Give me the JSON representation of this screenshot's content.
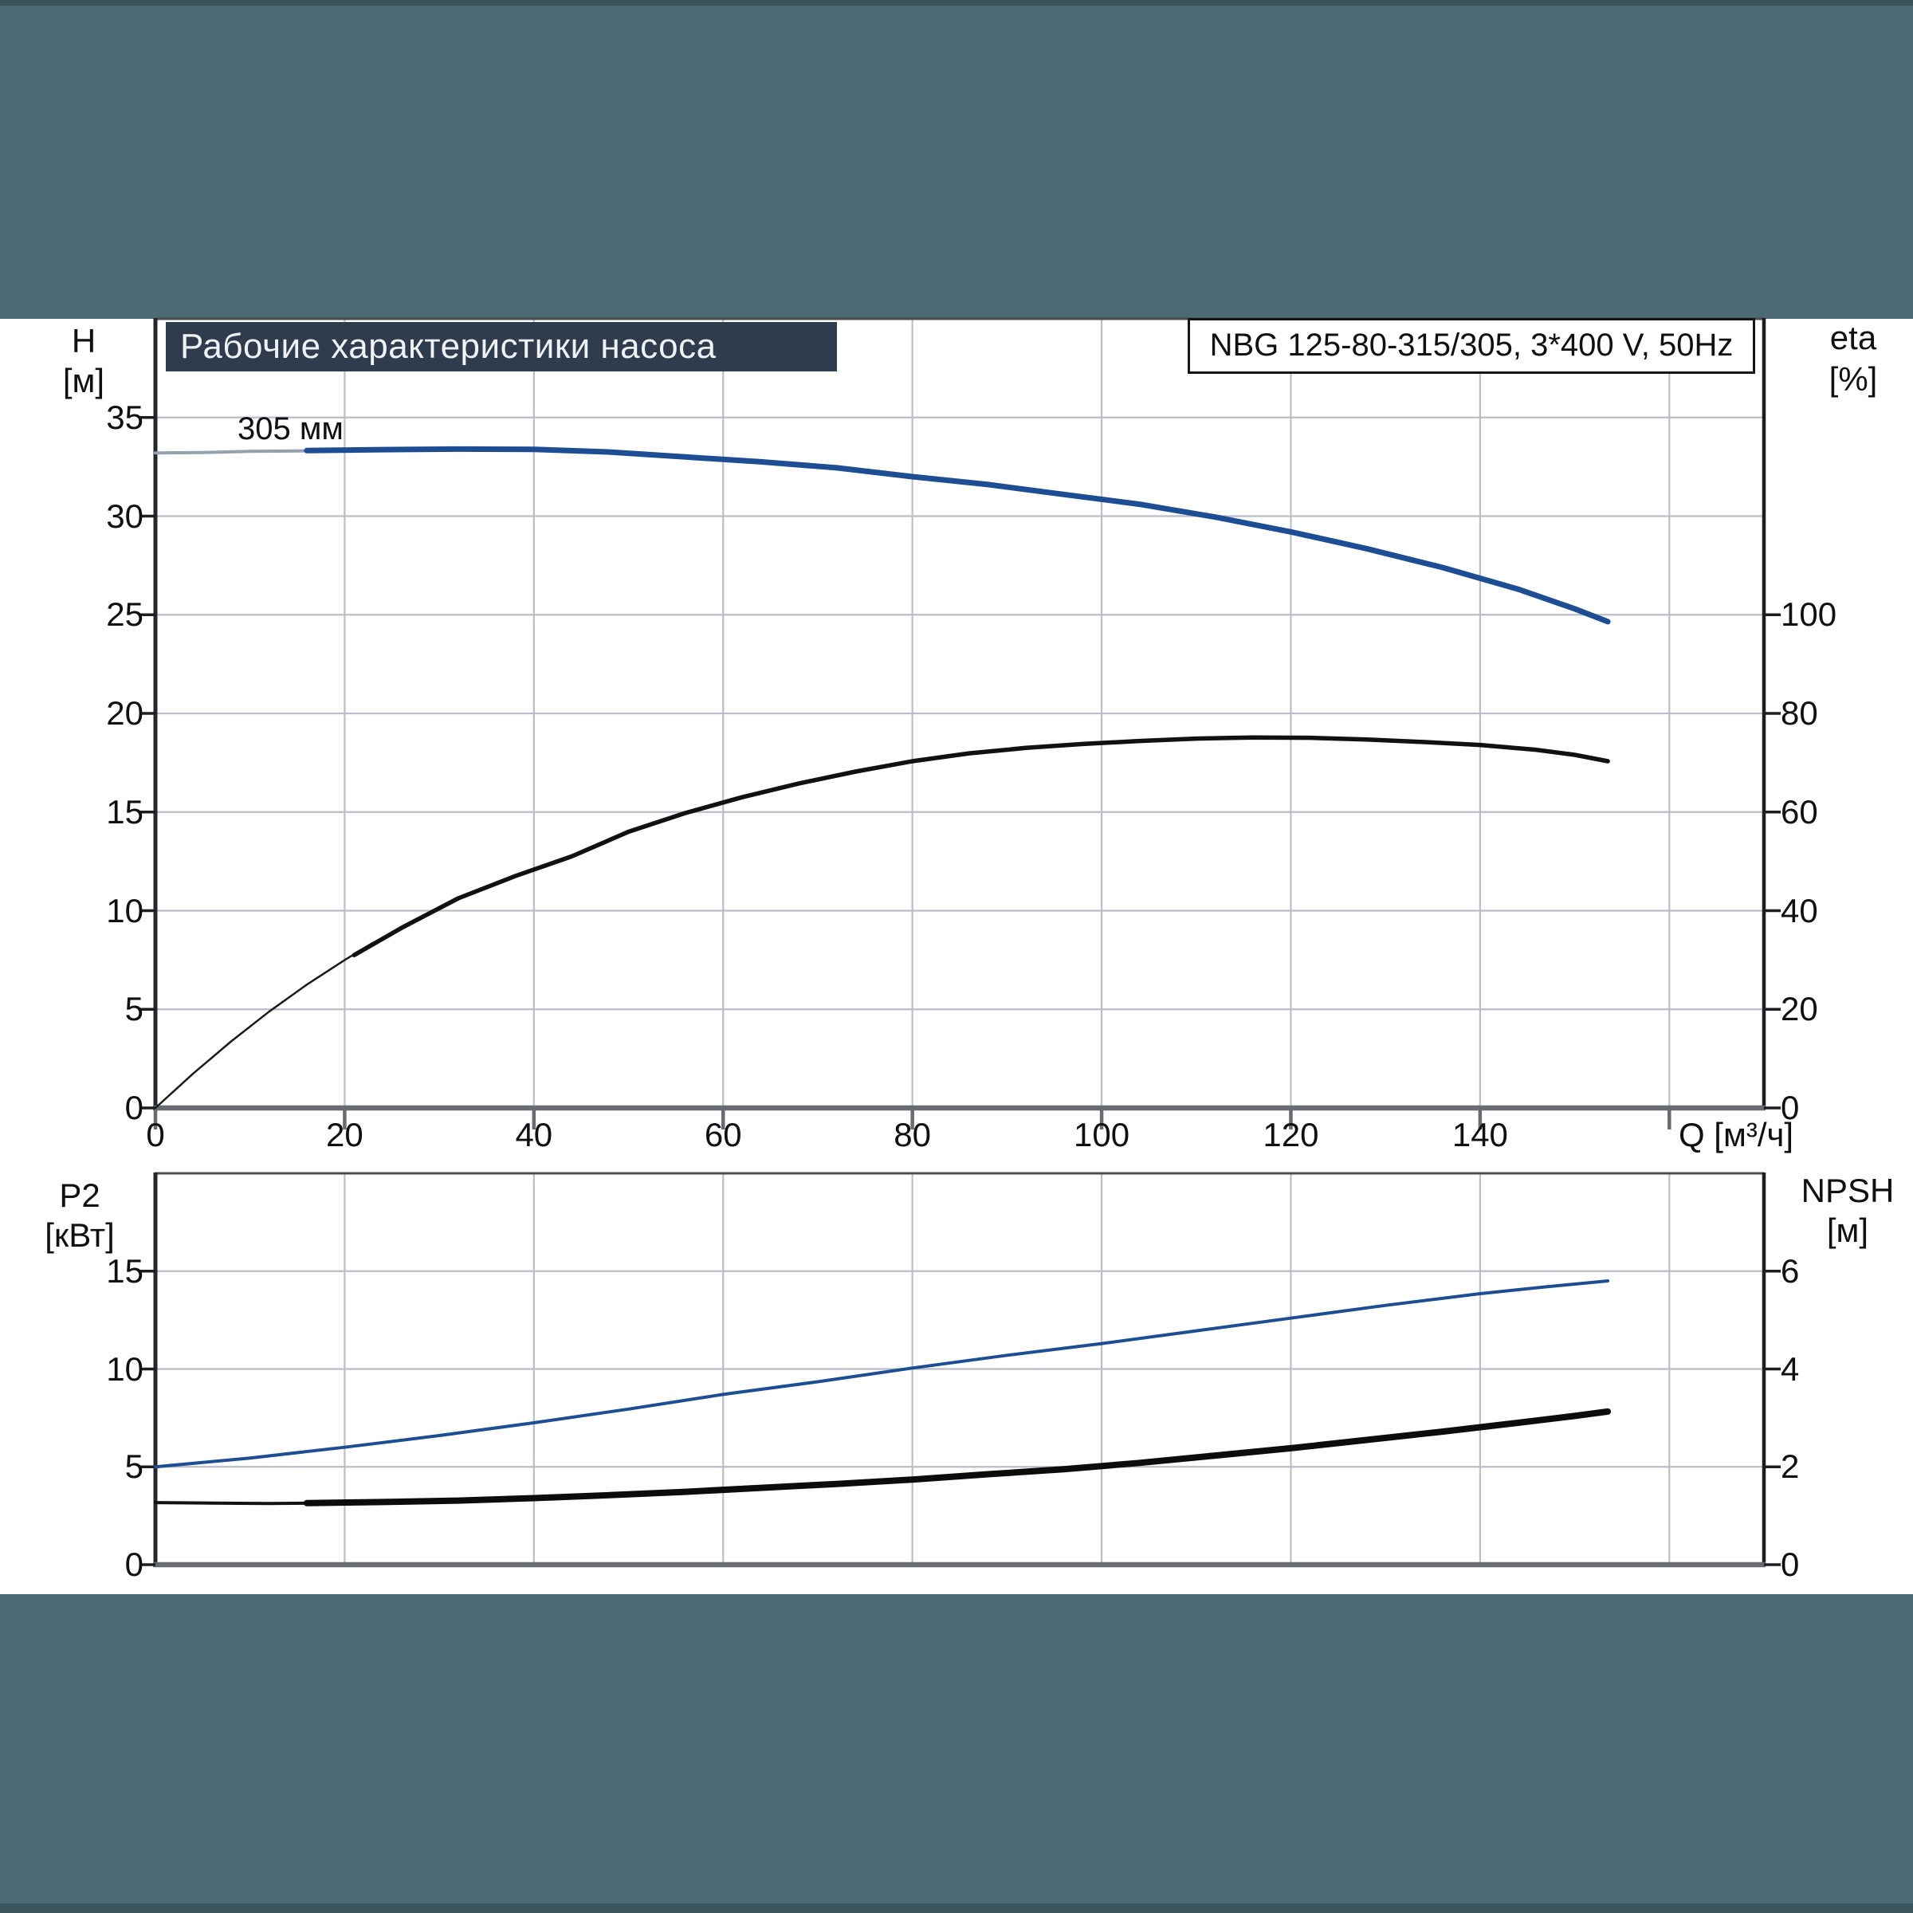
{
  "page": {
    "background": "#4d6973",
    "edge_color": "#3a545e",
    "sheet_color": "#ffffff"
  },
  "header": {
    "title": "Рабочие характеристики насоса",
    "title_bg": "#2e3c4e",
    "title_color": "#eef2f5",
    "product_label": "NBG 125-80-315/305, 3*400 V, 50Hz"
  },
  "labels": {
    "h_name": "H",
    "h_unit": "[м]",
    "eta_name": "eta",
    "eta_unit": "[%]",
    "q_label": "Q [м³/ч]",
    "curve_label": "305 мм",
    "p2_name": "P2",
    "p2_unit": "[кВт]",
    "npsh_name": "NPSH",
    "npsh_unit": "[м]"
  },
  "colors": {
    "grid": "#b9bec7",
    "frame_top": "#4a4c52",
    "axis_dark": "#26272c",
    "axis_gray": "#686b71",
    "tick_dark": "#1d1e22",
    "curve_blue": "#1d4e94",
    "curve_black": "#111111",
    "curve_gray_lead": "#96a1ab"
  },
  "chart_data": [
    {
      "type": "line",
      "title": "Рабочие характеристики насоса",
      "x_axis": {
        "label": "Q [м³/ч]",
        "min": 0,
        "max": 170,
        "grid_step": 20,
        "ticks": [
          0,
          20,
          40,
          60,
          80,
          100,
          120,
          140
        ],
        "show_ticks": true
      },
      "y_left": {
        "label": "H [м]",
        "min": 0,
        "max": 40,
        "grid_step": 5,
        "ticks": [
          0,
          5,
          10,
          15,
          20,
          25,
          30,
          35
        ]
      },
      "y_right": {
        "label": "eta [%]",
        "min": 0,
        "max": 160,
        "grid_step": 20,
        "ticks": [
          0,
          20,
          40,
          60,
          80,
          100
        ]
      },
      "grid": true,
      "legend": "none",
      "series": [
        {
          "name": "head-curve-lead-in",
          "axis": "left",
          "color": "#96a1ab",
          "width": 4,
          "points": [
            [
              0,
              33.2
            ],
            [
              5,
              33.22
            ],
            [
              10,
              33.28
            ],
            [
              15,
              33.3
            ],
            [
              18,
              33.32
            ]
          ]
        },
        {
          "name": "head-curve-305mm",
          "axis": "left",
          "color": "#1d4e94",
          "width": 7,
          "points": [
            [
              16,
              33.32
            ],
            [
              24,
              33.37
            ],
            [
              32,
              33.4
            ],
            [
              40,
              33.38
            ],
            [
              48,
              33.25
            ],
            [
              56,
              33.0
            ],
            [
              64,
              32.75
            ],
            [
              72,
              32.45
            ],
            [
              80,
              32.0
            ],
            [
              88,
              31.6
            ],
            [
              96,
              31.1
            ],
            [
              104,
              30.6
            ],
            [
              112,
              29.95
            ],
            [
              120,
              29.2
            ],
            [
              128,
              28.35
            ],
            [
              136,
              27.4
            ],
            [
              144,
              26.3
            ],
            [
              150,
              25.3
            ],
            [
              153.5,
              24.65
            ]
          ]
        },
        {
          "name": "efficiency-curve-lead-in",
          "axis": "right",
          "color": "#1a1a18",
          "width": 2.5,
          "points": [
            [
              0,
              0
            ],
            [
              4,
              7
            ],
            [
              8,
              13.5
            ],
            [
              12,
              19.5
            ],
            [
              16,
              25
            ],
            [
              20,
              30
            ],
            [
              23,
              33.5
            ]
          ]
        },
        {
          "name": "efficiency-curve",
          "axis": "right",
          "color": "#111111",
          "width": 5.5,
          "points": [
            [
              21,
              31
            ],
            [
              26,
              36.5
            ],
            [
              32,
              42.5
            ],
            [
              38,
              47
            ],
            [
              44,
              51
            ],
            [
              50,
              56
            ],
            [
              56,
              59.8
            ],
            [
              62,
              63
            ],
            [
              68,
              65.8
            ],
            [
              74,
              68.2
            ],
            [
              80,
              70.3
            ],
            [
              86,
              71.9
            ],
            [
              92,
              73
            ],
            [
              98,
              73.8
            ],
            [
              104,
              74.4
            ],
            [
              110,
              74.9
            ],
            [
              116,
              75.1
            ],
            [
              122,
              75.05
            ],
            [
              128,
              74.7
            ],
            [
              134,
              74.2
            ],
            [
              140,
              73.6
            ],
            [
              146,
              72.6
            ],
            [
              150,
              71.6
            ],
            [
              153.5,
              70.3
            ]
          ]
        }
      ]
    },
    {
      "type": "line",
      "title": "P2 / NPSH",
      "x_axis": {
        "label": "",
        "min": 0,
        "max": 170,
        "grid_step": 20,
        "ticks": [],
        "show_ticks": false
      },
      "y_left": {
        "label": "P2 [кВт]",
        "min": 0,
        "max": 20,
        "grid_step": 5,
        "ticks": [
          0,
          5,
          10,
          15
        ]
      },
      "y_right": {
        "label": "NPSH [м]",
        "min": 0,
        "max": 8,
        "grid_step": 2,
        "ticks": [
          0,
          2,
          4,
          6
        ]
      },
      "grid": true,
      "legend": "none",
      "series": [
        {
          "name": "p2-curve",
          "axis": "left",
          "color": "#1d4e94",
          "width": 4,
          "points": [
            [
              0,
              5.0
            ],
            [
              10,
              5.45
            ],
            [
              20,
              6.0
            ],
            [
              30,
              6.6
            ],
            [
              40,
              7.25
            ],
            [
              50,
              7.95
            ],
            [
              60,
              8.7
            ],
            [
              70,
              9.35
            ],
            [
              80,
              10.05
            ],
            [
              90,
              10.7
            ],
            [
              100,
              11.3
            ],
            [
              110,
              11.95
            ],
            [
              120,
              12.6
            ],
            [
              130,
              13.25
            ],
            [
              140,
              13.85
            ],
            [
              147,
              14.2
            ],
            [
              153.5,
              14.5
            ]
          ]
        },
        {
          "name": "npsh-curve-lead-in",
          "axis": "right",
          "color": "#15130f",
          "width": 4,
          "points": [
            [
              0,
              1.27
            ],
            [
              6,
              1.26
            ],
            [
              12,
              1.25
            ],
            [
              18,
              1.26
            ]
          ]
        },
        {
          "name": "npsh-curve",
          "axis": "right",
          "color": "#0c0c0c",
          "width": 8,
          "points": [
            [
              16,
              1.26
            ],
            [
              24,
              1.28
            ],
            [
              32,
              1.31
            ],
            [
              40,
              1.36
            ],
            [
              48,
              1.42
            ],
            [
              56,
              1.49
            ],
            [
              64,
              1.57
            ],
            [
              72,
              1.65
            ],
            [
              80,
              1.74
            ],
            [
              88,
              1.85
            ],
            [
              96,
              1.95
            ],
            [
              104,
              2.08
            ],
            [
              112,
              2.23
            ],
            [
              120,
              2.38
            ],
            [
              128,
              2.55
            ],
            [
              136,
              2.72
            ],
            [
              144,
              2.9
            ],
            [
              150,
              3.04
            ],
            [
              153.5,
              3.13
            ]
          ]
        }
      ]
    }
  ]
}
